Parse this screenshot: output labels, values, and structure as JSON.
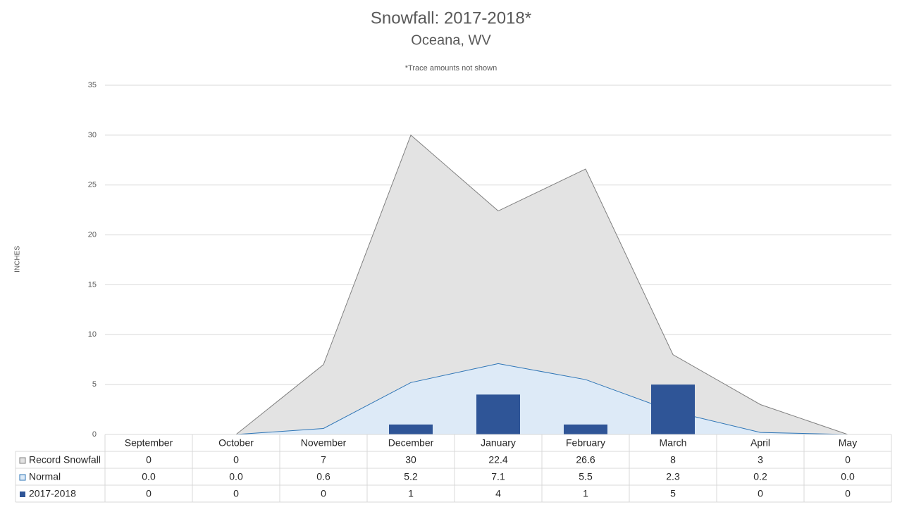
{
  "chart_data": {
    "type": "combo",
    "title": "Snowfall: 2017-2018*",
    "subtitle": "Oceana, WV",
    "note": "*Trace amounts not shown",
    "y_label": "INCHES",
    "categories": [
      "September",
      "October",
      "November",
      "December",
      "January",
      "February",
      "March",
      "April",
      "May"
    ],
    "series": [
      {
        "name": "Record Snowfall",
        "type": "area",
        "color": "#e3e3e3",
        "stroke": "#808080",
        "values": [
          0,
          0,
          7,
          30,
          22.4,
          26.6,
          8,
          3,
          0
        ]
      },
      {
        "name": "Normal",
        "type": "area",
        "color": "#ddeaf7",
        "stroke": "#2e75b6",
        "values": [
          0,
          0,
          0.6,
          5.2,
          7.1,
          5.5,
          2.3,
          0.2,
          0
        ],
        "value_labels": [
          "0.0",
          "0.0",
          "0.6",
          "5.2",
          "7.1",
          "5.5",
          "2.3",
          "0.2",
          "0.0"
        ]
      },
      {
        "name": "2017-2018",
        "type": "bar",
        "color": "#2f5597",
        "values": [
          0,
          0,
          0,
          1,
          4,
          1,
          5,
          0,
          0
        ]
      }
    ],
    "ylim": [
      0,
      35
    ],
    "yticks": [
      0,
      5,
      10,
      15,
      20,
      25,
      30,
      35
    ],
    "grid": true
  }
}
